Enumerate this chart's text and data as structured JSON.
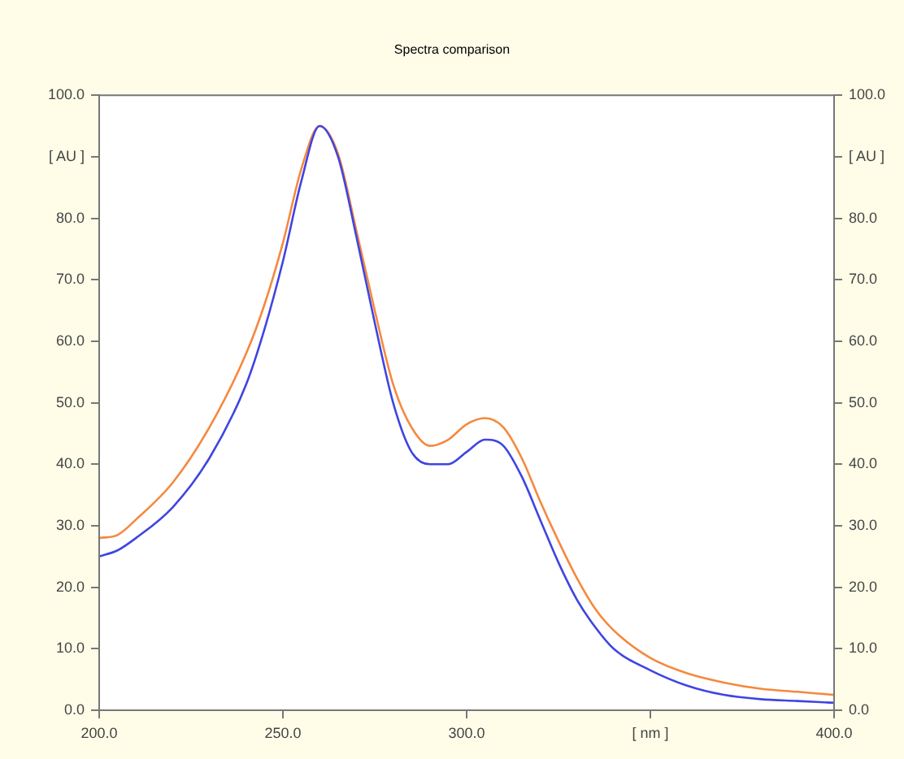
{
  "chart_data": {
    "type": "line",
    "title": "Spectra comparison",
    "x": [
      200,
      205,
      210,
      220,
      230,
      240,
      245,
      250,
      255,
      260,
      265,
      270,
      275,
      280,
      285,
      290,
      295,
      300,
      305,
      310,
      315,
      320,
      325,
      330,
      335,
      340,
      350,
      360,
      370,
      380,
      390,
      400
    ],
    "series": [
      {
        "color": "#3f45e0",
        "values": [
          25,
          26,
          28,
          33,
          41,
          53,
          62,
          73,
          86,
          95,
          90,
          77,
          63,
          50,
          42,
          40,
          40,
          42,
          44,
          43,
          38,
          31,
          24,
          18,
          13.5,
          10,
          6.5,
          4,
          2.5,
          1.8,
          1.5,
          1.2
        ]
      },
      {
        "color": "#f5893e",
        "values": [
          28,
          28.5,
          31,
          37,
          46,
          58,
          66,
          76,
          88,
          95,
          90.5,
          78,
          65,
          53,
          46,
          43,
          44,
          46.5,
          47.5,
          46,
          41,
          34,
          27.5,
          21.5,
          16.5,
          13,
          8.5,
          6,
          4.5,
          3.5,
          3,
          2.5
        ]
      }
    ],
    "xlim": [
      200,
      400
    ],
    "xticks": [
      {
        "value": 200,
        "label": "200.0"
      },
      {
        "value": 250,
        "label": "250.0"
      },
      {
        "value": 300,
        "label": "300.0"
      },
      {
        "value": 350,
        "label": "[ nm ]"
      },
      {
        "value": 400,
        "label": "400.0"
      }
    ],
    "ylim": [
      0,
      100
    ],
    "yticks": [
      {
        "value": 0,
        "label": "0.0"
      },
      {
        "value": 10,
        "label": "10.0"
      },
      {
        "value": 20,
        "label": "20.0"
      },
      {
        "value": 30,
        "label": "30.0"
      },
      {
        "value": 40,
        "label": "40.0"
      },
      {
        "value": 50,
        "label": "50.0"
      },
      {
        "value": 60,
        "label": "60.0"
      },
      {
        "value": 70,
        "label": "70.0"
      },
      {
        "value": 80,
        "label": "80.0"
      },
      {
        "value": 90,
        "label": "[ AU ]"
      },
      {
        "value": 100,
        "label": "100.0"
      }
    ],
    "y2lim": [
      0,
      100
    ],
    "y2ticks": [
      {
        "value": 0,
        "label": "0.0"
      },
      {
        "value": 10,
        "label": "10.0"
      },
      {
        "value": 20,
        "label": "20.0"
      },
      {
        "value": 30,
        "label": "30.0"
      },
      {
        "value": 40,
        "label": "40.0"
      },
      {
        "value": 50,
        "label": "50.0"
      },
      {
        "value": 60,
        "label": "60.0"
      },
      {
        "value": 70,
        "label": "70.0"
      },
      {
        "value": 80,
        "label": "80.0"
      },
      {
        "value": 90,
        "label": "[ AU ]"
      },
      {
        "value": 100,
        "label": "100.0"
      }
    ],
    "grid": false,
    "legend": false,
    "marker": "none",
    "line_style": "solid"
  }
}
